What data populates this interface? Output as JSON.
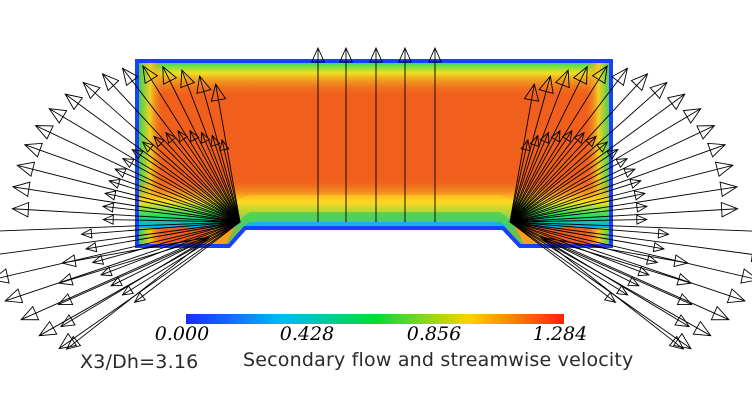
{
  "figure": {
    "station_label": "X3/Dh=3.16",
    "title": "Secondary flow and streamwise velocity"
  },
  "colorbar": {
    "ticks": [
      "0.000",
      "0.428",
      "0.856",
      "1.284"
    ],
    "min": 0.0,
    "max": 1.284,
    "colors": [
      "#1030ff",
      "#00c8ff",
      "#00e040",
      "#ffd000",
      "#ff2a00"
    ]
  },
  "field": {
    "core_color": "#f05a1a",
    "wall_color": "#1040ff"
  }
}
